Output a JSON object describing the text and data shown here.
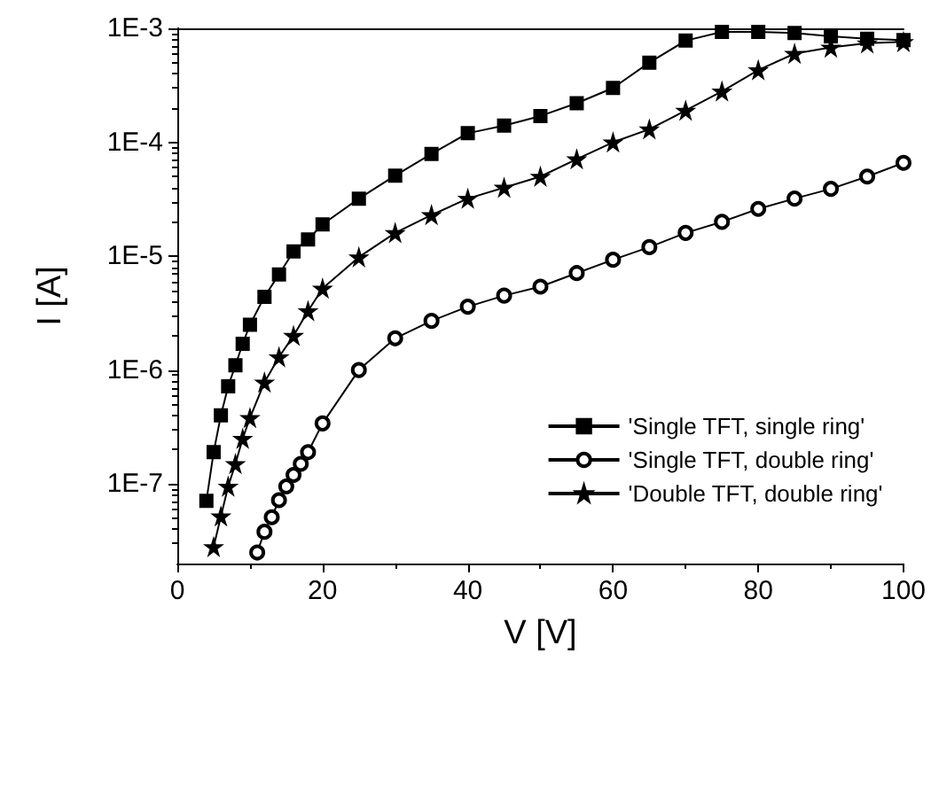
{
  "chart_data": {
    "type": "line",
    "xlabel": "V [V]",
    "ylabel": "I [A]",
    "log": "y",
    "xlim": [
      0,
      100
    ],
    "xticks": [
      0,
      20,
      40,
      60,
      80,
      100
    ],
    "ylim": [
      2e-08,
      0.001
    ],
    "yticks": [
      {
        "value": 1e-07,
        "label": "1E-7"
      },
      {
        "value": 1e-06,
        "label": "1E-6"
      },
      {
        "value": 1e-05,
        "label": "1E-5"
      },
      {
        "value": 0.0001,
        "label": "1E-4"
      },
      {
        "value": 0.001,
        "label": "1E-3"
      }
    ],
    "grid": false,
    "legend": "bottom right",
    "line_style": "solid",
    "series": [
      {
        "name": "'Single TFT, single ring'",
        "color": "#000000",
        "marker": "square",
        "x": [
          4,
          5,
          6,
          7,
          8,
          9,
          10,
          12,
          14,
          16,
          18,
          20,
          25,
          30,
          35,
          40,
          45,
          50,
          55,
          60,
          65,
          70,
          75,
          80,
          85,
          90,
          95,
          100
        ],
        "values": [
          7.1e-08,
          1.9e-07,
          4e-07,
          7.2e-07,
          1.1e-06,
          1.7e-06,
          2.5e-06,
          4.4e-06,
          6.9e-06,
          1.1e-05,
          1.4e-05,
          1.9e-05,
          3.2e-05,
          5.1e-05,
          7.9e-05,
          0.00012,
          0.00014,
          0.00017,
          0.00022,
          0.0003,
          0.0005,
          0.00078,
          0.00093,
          0.00093,
          0.00091,
          0.00085,
          0.00081,
          0.00079
        ]
      },
      {
        "name": "'Single TFT, double ring'",
        "color": "#000000",
        "marker": "circle",
        "x": [
          11,
          12,
          13,
          14,
          15,
          16,
          17,
          18,
          20,
          25,
          30,
          35,
          40,
          45,
          50,
          55,
          60,
          65,
          70,
          75,
          80,
          85,
          90,
          95,
          100
        ],
        "values": [
          2.5e-08,
          3.8e-08,
          5.1e-08,
          7.2e-08,
          9.5e-08,
          1.2e-07,
          1.5e-07,
          1.9e-07,
          3.4e-07,
          1e-06,
          1.9e-06,
          2.7e-06,
          3.6e-06,
          4.5e-06,
          5.4e-06,
          7.1e-06,
          9.3e-06,
          1.2e-05,
          1.6e-05,
          2e-05,
          2.6e-05,
          3.2e-05,
          3.9e-05,
          5e-05,
          6.6e-05
        ]
      },
      {
        "name": "'Double TFT, double ring'",
        "color": "#000000",
        "marker": "star",
        "x": [
          5,
          6,
          7,
          8,
          9,
          10,
          12,
          14,
          16,
          18,
          20,
          25,
          30,
          35,
          40,
          45,
          50,
          55,
          60,
          65,
          70,
          75,
          80,
          85,
          90,
          95,
          100
        ],
        "values": [
          2.8e-08,
          5.2e-08,
          9.5e-08,
          1.5e-07,
          2.5e-07,
          3.8e-07,
          7.8e-07,
          1.3e-06,
          2e-06,
          3.3e-06,
          5.2e-06,
          9.8e-06,
          1.6e-05,
          2.3e-05,
          3.2e-05,
          4e-05,
          5e-05,
          7.1e-05,
          0.0001,
          0.00013,
          0.00019,
          0.00028,
          0.00043,
          0.0006,
          0.00068,
          0.00074,
          0.00076
        ]
      }
    ]
  }
}
